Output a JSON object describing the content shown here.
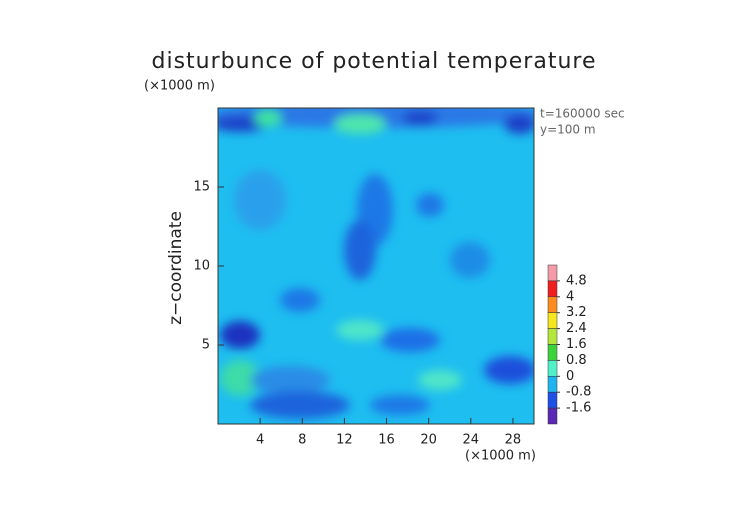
{
  "chart_data": {
    "type": "contour",
    "title": "disturbunce of potential temperature",
    "y_unit": "(×1000 m)",
    "x_unit": "(×1000 m)",
    "ylabel": "z−coordinate",
    "annotations": [
      "t=160000 sec",
      "y=100 m"
    ],
    "xlim": [
      0,
      30
    ],
    "xticks": [
      4,
      8,
      12,
      16,
      20,
      24,
      28
    ],
    "ylim": [
      0,
      20
    ],
    "yticks": [
      5,
      10,
      15
    ],
    "colorbar": {
      "ticks": [
        4.8,
        4,
        3.2,
        2.4,
        1.6,
        0.8,
        0,
        -0.8,
        -1.6
      ],
      "colors": [
        "#f59aa8",
        "#f01e1e",
        "#ff8c1e",
        "#f5e61e",
        "#b4e63c",
        "#3cd23c",
        "#50f0c8",
        "#1eb4f0",
        "#1e50e6",
        "#5a28b4"
      ]
    }
  }
}
